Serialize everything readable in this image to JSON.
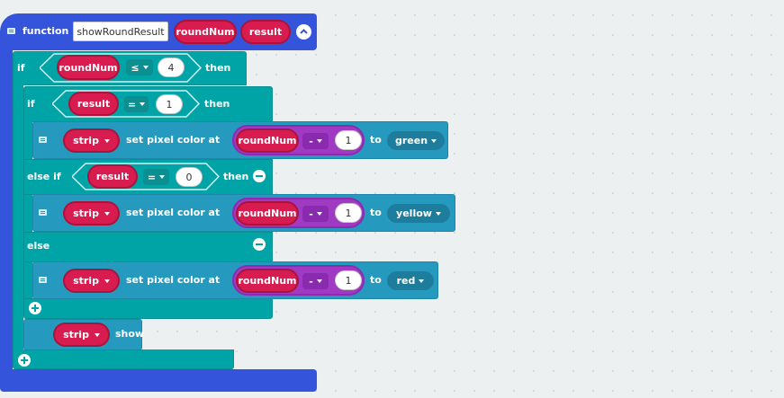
{
  "function_block": {
    "keyword": "function",
    "name": "showRoundResult",
    "params": [
      "roundNum",
      "result"
    ]
  },
  "outer_if": {
    "if_label": "if",
    "variable": "roundNum",
    "operator": "≤",
    "value": "4",
    "then_label": "then"
  },
  "inner_if": {
    "if_label": "if",
    "variable": "result",
    "operator": "=",
    "value": "1",
    "then_label": "then",
    "else_if_label": "else if",
    "else_if_variable": "result",
    "else_if_operator": "=",
    "else_if_value": "0",
    "else_if_then_label": "then",
    "else_label": "else"
  },
  "set_pixel_rows": [
    {
      "strip": "strip",
      "action": "set pixel color at",
      "variable": "roundNum",
      "operator": "-",
      "value": "1",
      "to_label": "to",
      "color": "green"
    },
    {
      "strip": "strip",
      "action": "set pixel color at",
      "variable": "roundNum",
      "operator": "-",
      "value": "1",
      "to_label": "to",
      "color": "yellow"
    },
    {
      "strip": "strip",
      "action": "set pixel color at",
      "variable": "roundNum",
      "operator": "-",
      "value": "1",
      "to_label": "to",
      "color": "red"
    }
  ],
  "show_block": {
    "strip": "strip",
    "action": "show"
  },
  "colors": {
    "function_blue": "#3455db",
    "logic_teal": "#00a4a6",
    "neopixel_blue": "#2699bf",
    "variable_red": "#d91c4f",
    "math_purple": "#a03ac3",
    "workspace": "#ecf0f1"
  },
  "icons": [
    "comment-icon",
    "collapse-icon",
    "add-icon",
    "remove-icon",
    "dropdown-caret-icon"
  ]
}
